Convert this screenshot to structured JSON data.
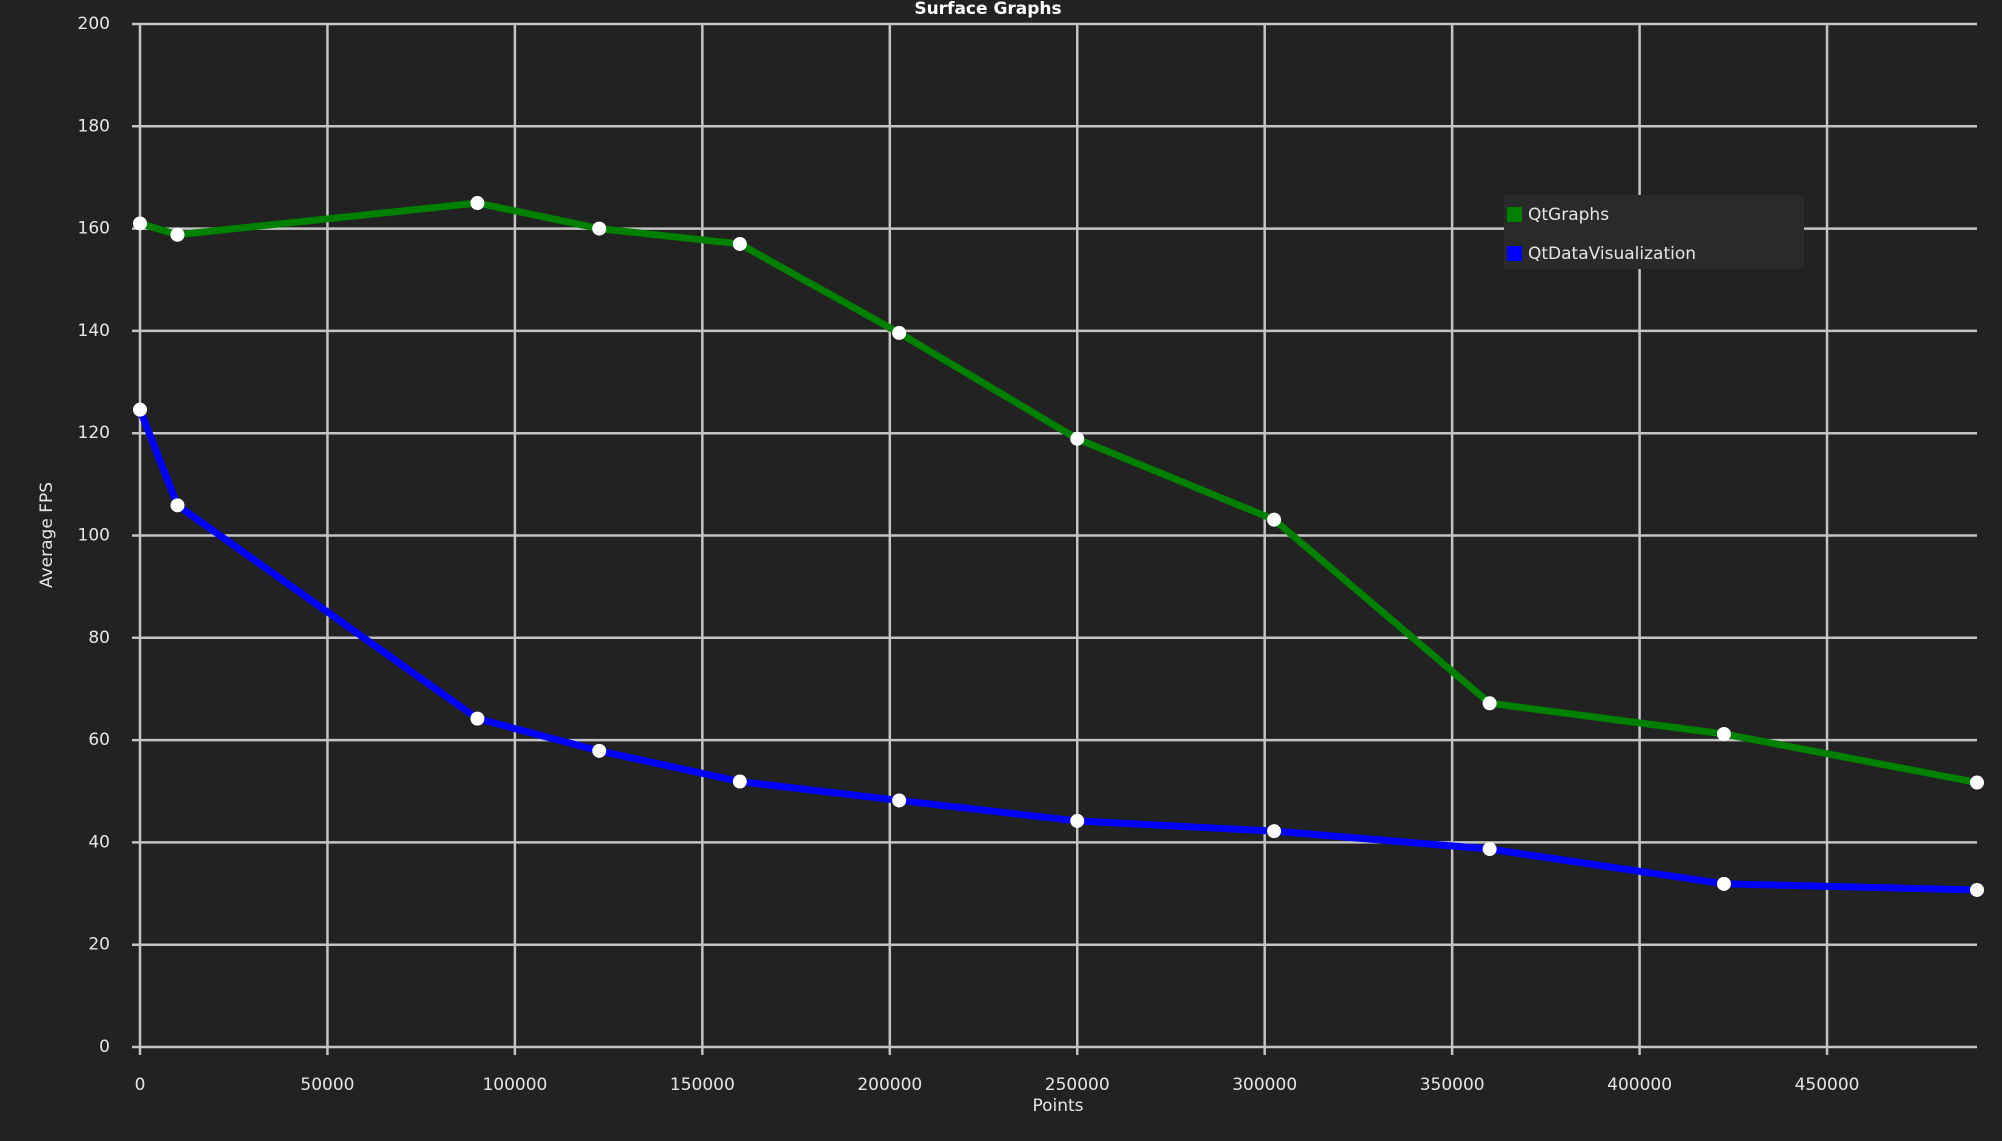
{
  "chart_data": {
    "type": "line",
    "title": "Surface Graphs",
    "x_label": "Points",
    "y_label": "Average FPS",
    "x": [
      0,
      10000,
      90000,
      122500,
      160000,
      202500,
      250000,
      302500,
      360000,
      422500,
      490000
    ],
    "series": [
      {
        "name": "QtGraphs",
        "color": "#008000",
        "values": [
          161,
          158.8,
          165,
          160,
          157,
          139.6,
          118.9,
          103.1,
          67.2,
          61.2,
          51.7
        ]
      },
      {
        "name": "QtDataVisualization",
        "color": "#0000ff",
        "values": [
          124.6,
          105.9,
          64.2,
          57.9,
          51.9,
          48.2,
          44.2,
          42.2,
          38.7,
          31.9,
          30.7
        ]
      }
    ],
    "xlim": [
      0,
      490000
    ],
    "ylim": [
      0,
      200
    ],
    "xticks": [
      0,
      50000,
      100000,
      150000,
      200000,
      250000,
      300000,
      350000,
      400000,
      450000
    ],
    "yticks": [
      0,
      20,
      40,
      60,
      80,
      100,
      120,
      140,
      160,
      180,
      200
    ],
    "grid": true,
    "legend": "upper-right"
  }
}
